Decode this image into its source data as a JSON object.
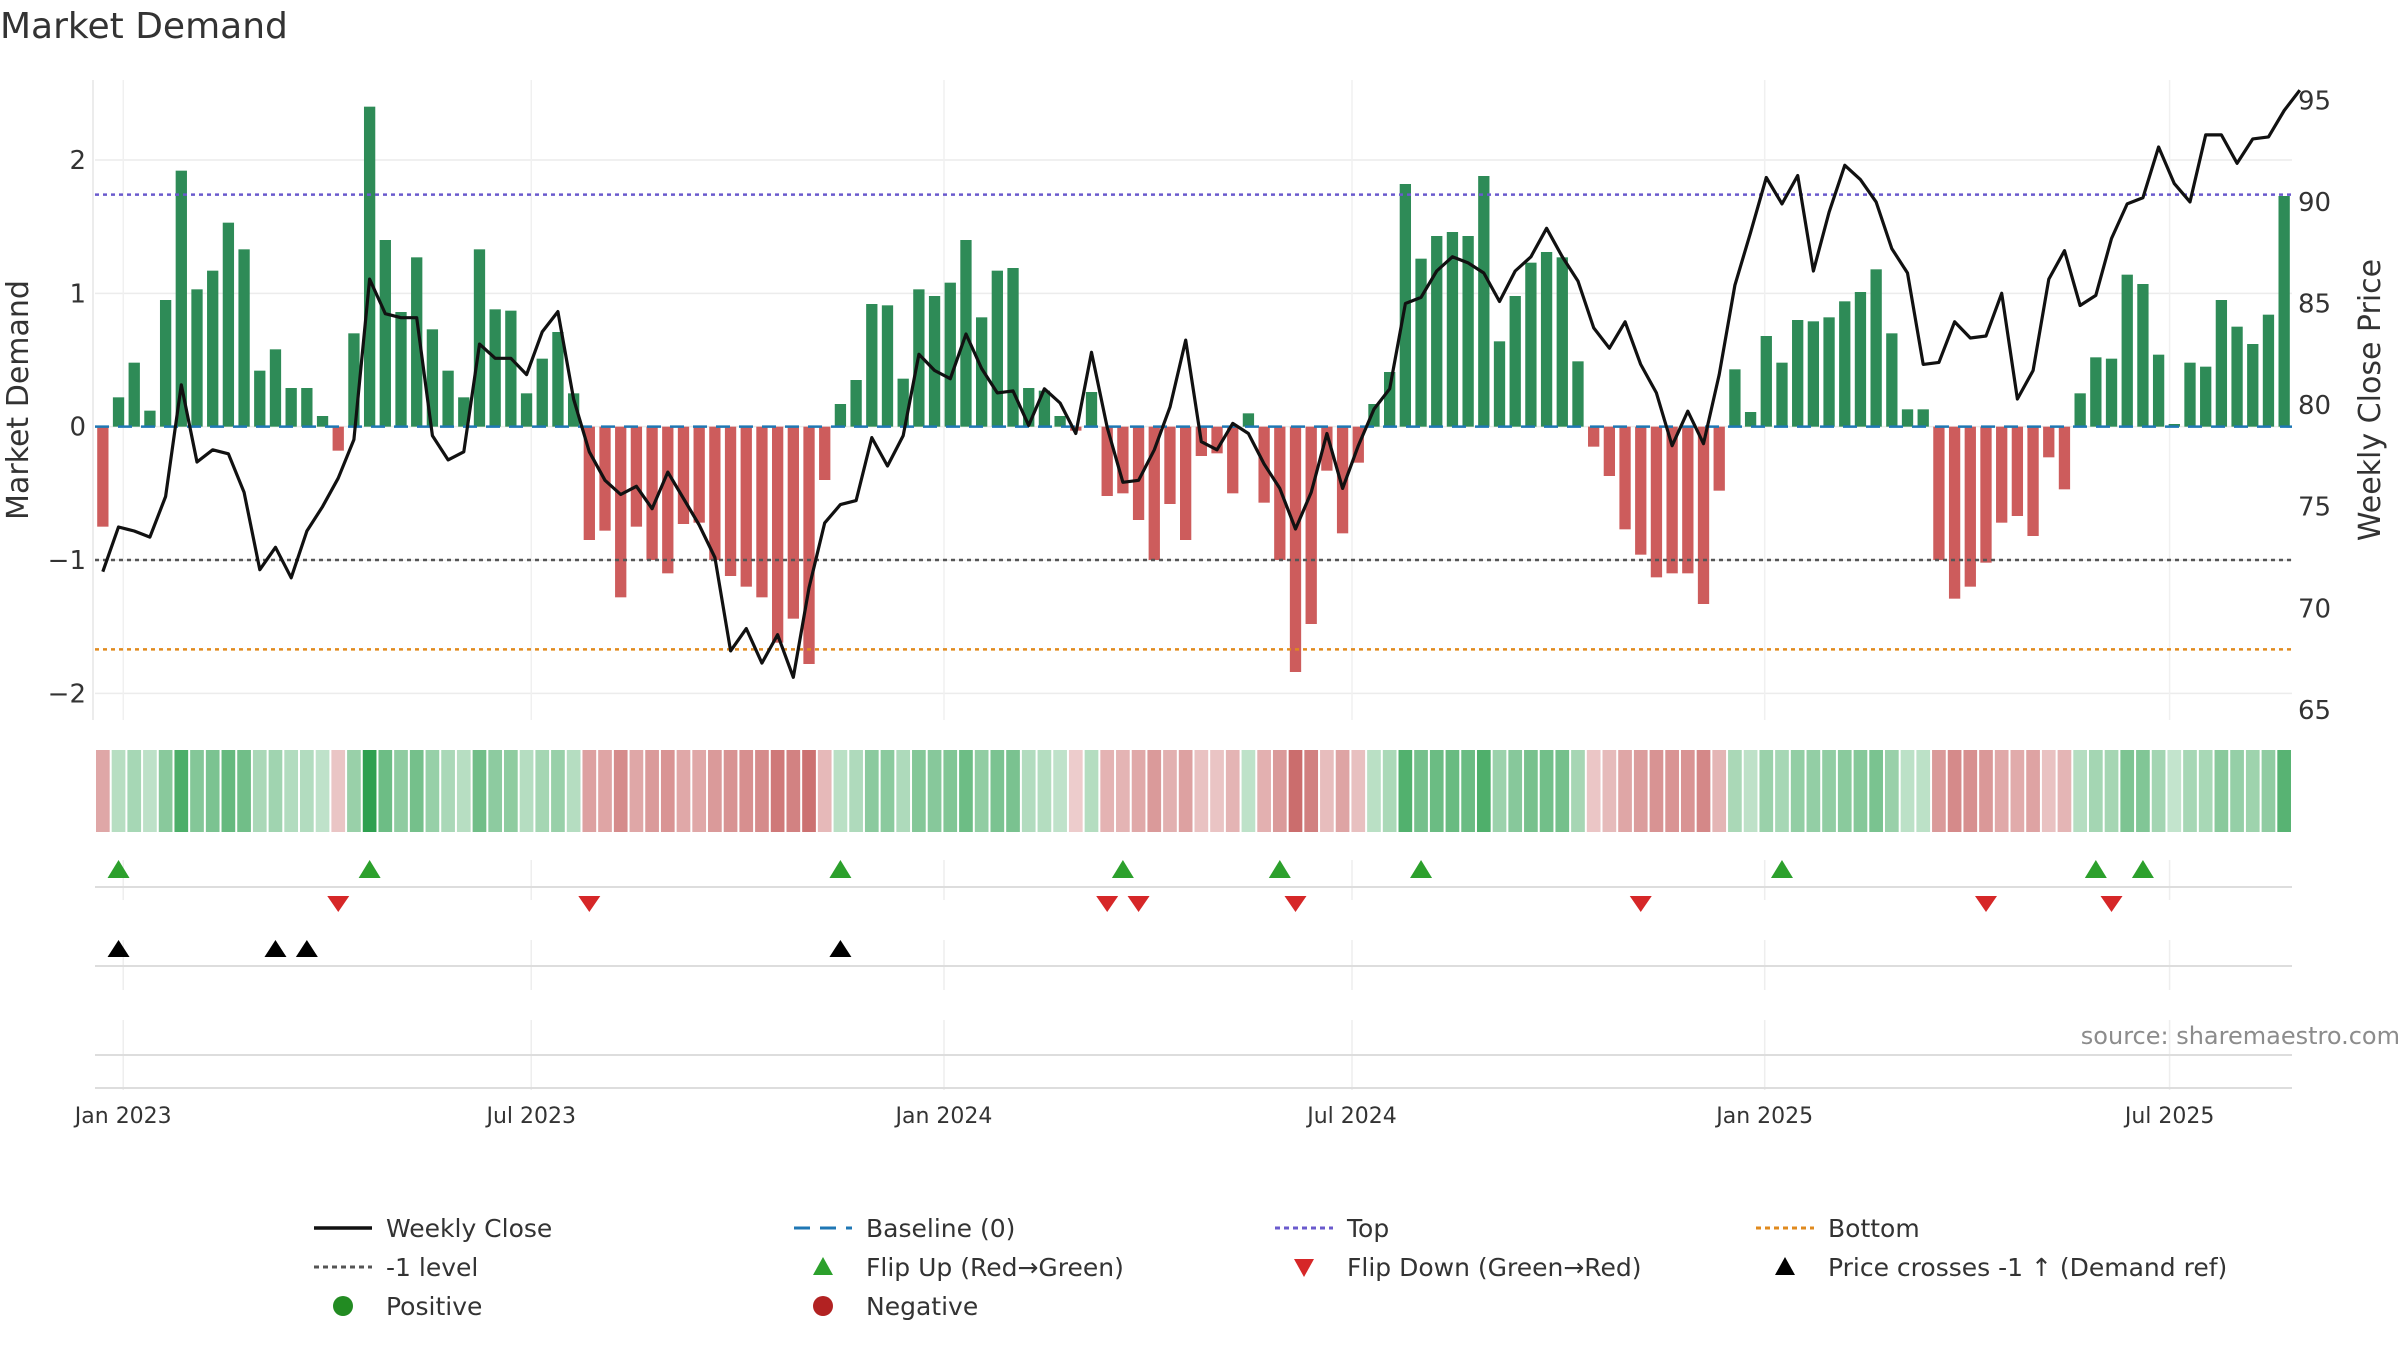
{
  "title": "Market Demand",
  "source": "source: sharemaestro.com",
  "chart_data": {
    "type": "bar",
    "title": "Market Demand",
    "ylabel_left": "Market Demand",
    "ylabel_right": "Weekly Close Price",
    "ylim_left": [
      -2.2,
      2.6
    ],
    "ylim_right": [
      64.5,
      96
    ],
    "yticks_left": [
      {
        "v": 2,
        "t": "2"
      },
      {
        "v": 1,
        "t": "1"
      },
      {
        "v": 0,
        "t": "0"
      },
      {
        "v": -1,
        "t": "−1"
      },
      {
        "v": -2,
        "t": "−2"
      }
    ],
    "yticks_right": [
      {
        "v": 95,
        "t": "95"
      },
      {
        "v": 90,
        "t": "90"
      },
      {
        "v": 85,
        "t": "85"
      },
      {
        "v": 80,
        "t": "80"
      },
      {
        "v": 75,
        "t": "75"
      },
      {
        "v": 70,
        "t": "70"
      },
      {
        "v": 65,
        "t": "65"
      }
    ],
    "xticks": [
      {
        "i": 1.3,
        "t": "Jan 2023"
      },
      {
        "i": 27.3,
        "t": "Jul 2023"
      },
      {
        "i": 53.6,
        "t": "Jan 2024"
      },
      {
        "i": 79.6,
        "t": "Jul 2024"
      },
      {
        "i": 105.9,
        "t": "Jan 2025"
      },
      {
        "i": 131.7,
        "t": "Jul 2025"
      }
    ],
    "reference_lines": {
      "top": 1.74,
      "level_minus1": -1.0,
      "bottom": -1.67,
      "baseline": 0
    },
    "demand": [
      -0.75,
      0.22,
      0.48,
      0.12,
      0.95,
      1.92,
      1.03,
      1.17,
      1.53,
      1.33,
      0.42,
      0.58,
      0.29,
      0.29,
      0.08,
      -0.18,
      0.7,
      2.4,
      1.4,
      0.86,
      1.27,
      0.73,
      0.42,
      0.22,
      1.33,
      0.88,
      0.87,
      0.25,
      0.51,
      0.71,
      0.25,
      -0.85,
      -0.78,
      -1.28,
      -0.75,
      -1.0,
      -1.1,
      -0.73,
      -0.72,
      -1.0,
      -1.12,
      -1.2,
      -1.28,
      -1.62,
      -1.44,
      -1.78,
      -0.4,
      0.17,
      0.35,
      0.92,
      0.91,
      0.36,
      1.03,
      0.98,
      1.08,
      1.4,
      0.82,
      1.17,
      1.19,
      0.29,
      0.27,
      0.08,
      -0.03,
      0.26,
      -0.52,
      -0.5,
      -0.7,
      -1.0,
      -0.58,
      -0.85,
      -0.22,
      -0.2,
      -0.5,
      0.1,
      -0.57,
      -1.0,
      -1.84,
      -1.48,
      -0.33,
      -0.8,
      -0.27,
      0.17,
      0.41,
      1.82,
      1.26,
      1.43,
      1.46,
      1.43,
      1.88,
      0.64,
      0.98,
      1.23,
      1.31,
      1.27,
      0.49,
      -0.15,
      -0.37,
      -0.77,
      -0.96,
      -1.13,
      -1.1,
      -1.1,
      -1.33,
      -0.48,
      0.43,
      0.11,
      0.68,
      0.48,
      0.8,
      0.79,
      0.82,
      0.94,
      1.01,
      1.18,
      0.7,
      0.13,
      0.13,
      -1.0,
      -1.29,
      -1.2,
      -1.02,
      -0.72,
      -0.67,
      -0.82,
      -0.23,
      -0.47,
      0.25,
      0.52,
      0.51,
      1.14,
      1.07,
      0.54,
      0.02,
      0.48,
      0.45,
      0.95,
      0.75,
      0.62,
      0.84,
      1.73
    ],
    "close": [
      71.8,
      74.0,
      73.8,
      73.5,
      75.5,
      81.0,
      77.2,
      77.8,
      77.6,
      75.7,
      71.9,
      73.0,
      71.5,
      73.8,
      75.0,
      76.4,
      78.3,
      86.2,
      84.5,
      84.3,
      84.3,
      78.5,
      77.3,
      77.7,
      83.0,
      82.3,
      82.3,
      81.5,
      83.6,
      84.6,
      80.3,
      77.7,
      76.3,
      75.6,
      76.0,
      74.9,
      76.7,
      75.4,
      74.1,
      72.5,
      67.9,
      69.0,
      67.3,
      68.7,
      66.6,
      71.0,
      74.2,
      75.1,
      75.3,
      78.4,
      77.0,
      78.5,
      82.5,
      81.7,
      81.3,
      83.5,
      81.8,
      80.6,
      80.7,
      79.0,
      80.8,
      80.1,
      78.6,
      82.6,
      78.9,
      76.2,
      76.3,
      77.8,
      79.9,
      83.2,
      78.2,
      77.8,
      79.1,
      78.6,
      77.1,
      75.9,
      73.9,
      75.7,
      78.6,
      75.9,
      78.0,
      79.8,
      80.8,
      85.0,
      85.3,
      86.6,
      87.3,
      87.0,
      86.5,
      85.1,
      86.6,
      87.3,
      88.7,
      87.3,
      86.1,
      83.8,
      82.8,
      84.1,
      82.0,
      80.6,
      78.0,
      79.7,
      78.1,
      81.5,
      85.9,
      88.5,
      91.2,
      89.9,
      91.3,
      86.6,
      89.5,
      91.8,
      91.1,
      90.0,
      87.7,
      86.5,
      82.0,
      82.1,
      84.1,
      83.3,
      83.4,
      85.5,
      80.3,
      81.7,
      86.2,
      87.6,
      84.9,
      85.4,
      88.2,
      89.9,
      90.2,
      92.7,
      90.9,
      90.0,
      93.3,
      93.3,
      91.9,
      93.1,
      93.2,
      94.5,
      95.5
    ],
    "flip_up": [
      1,
      17,
      47,
      65,
      75,
      84,
      107,
      127,
      130
    ],
    "flip_down": [
      15,
      31,
      64,
      66,
      76,
      98,
      120,
      128
    ],
    "price_cross": [
      1,
      11,
      13,
      47
    ],
    "legend": [
      {
        "key": "weekly_close",
        "label": "Weekly Close"
      },
      {
        "key": "baseline",
        "label": "Baseline (0)"
      },
      {
        "key": "top",
        "label": "Top"
      },
      {
        "key": "bottom",
        "label": "Bottom"
      },
      {
        "key": "level_minus1",
        "label": "-1 level"
      },
      {
        "key": "flip_up",
        "label": "Flip Up (Red→Green)"
      },
      {
        "key": "flip_down",
        "label": "Flip Down (Green→Red)"
      },
      {
        "key": "price_cross",
        "label": "Price crosses -1 ↑ (Demand ref)"
      },
      {
        "key": "positive",
        "label": "Positive"
      },
      {
        "key": "negative",
        "label": "Negative"
      }
    ]
  },
  "colors": {
    "positive_bar": "#2e8b57",
    "negative_bar": "#cd5c5c",
    "close_line": "#111111",
    "baseline": "#1f77b4",
    "top": "#6a5acd",
    "bottom": "#e08a1e",
    "level_minus1": "#555555",
    "flip_up": "#2ca02c",
    "flip_down": "#d62728",
    "price_cross": "#000000",
    "positive_dot": "#228b22",
    "negative_dot": "#b22222"
  }
}
